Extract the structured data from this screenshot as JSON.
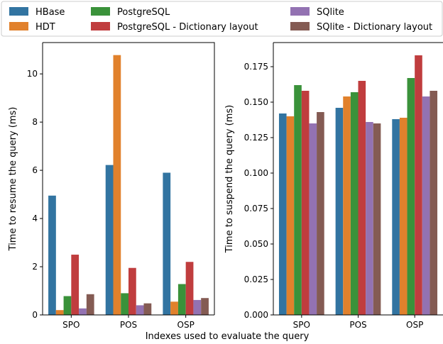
{
  "chart_data": [
    {
      "type": "bar",
      "categories": [
        "SPO",
        "POS",
        "OSP"
      ],
      "ylabel": "Time to resume the query (ms)",
      "ylim": [
        0,
        11.3
      ],
      "yticks": [
        0,
        2,
        4,
        6,
        8,
        10
      ],
      "yticklabels": [
        "0",
        "2",
        "4",
        "6",
        "8",
        "10"
      ],
      "series": [
        {
          "name": "HBase",
          "values": [
            4.95,
            6.22,
            5.9
          ]
        },
        {
          "name": "HDT",
          "values": [
            0.2,
            10.78,
            0.55
          ]
        },
        {
          "name": "PostgreSQL",
          "values": [
            0.78,
            0.9,
            1.28
          ]
        },
        {
          "name": "PostgreSQL - Dictionary layout",
          "values": [
            2.5,
            1.95,
            2.2
          ]
        },
        {
          "name": "SQlite",
          "values": [
            0.27,
            0.4,
            0.62
          ]
        },
        {
          "name": "SQlite - Dictionary layout",
          "values": [
            0.86,
            0.48,
            0.7
          ]
        }
      ]
    },
    {
      "type": "bar",
      "categories": [
        "SPO",
        "POS",
        "OSP"
      ],
      "ylabel": "Time to suspend the query (ms)",
      "ylim": [
        0,
        0.192
      ],
      "yticks": [
        0,
        0.025,
        0.05,
        0.075,
        0.1,
        0.125,
        0.15,
        0.175
      ],
      "yticklabels": [
        "0.000",
        "0.025",
        "0.050",
        "0.075",
        "0.100",
        "0.125",
        "0.150",
        "0.175"
      ],
      "series": [
        {
          "name": "HBase",
          "values": [
            0.142,
            0.146,
            0.138
          ]
        },
        {
          "name": "HDT",
          "values": [
            0.14,
            0.154,
            0.139
          ]
        },
        {
          "name": "PostgreSQL",
          "values": [
            0.162,
            0.157,
            0.167
          ]
        },
        {
          "name": "PostgreSQL - Dictionary layout",
          "values": [
            0.158,
            0.165,
            0.183
          ]
        },
        {
          "name": "SQlite",
          "values": [
            0.135,
            0.136,
            0.154
          ]
        },
        {
          "name": "SQlite - Dictionary layout",
          "values": [
            0.143,
            0.135,
            0.158
          ]
        }
      ]
    }
  ],
  "shared_xlabel": "Indexes used to evaluate the query",
  "legend": {
    "placement": "top",
    "entries": [
      {
        "label": "HBase",
        "color": "#3274a1"
      },
      {
        "label": "HDT",
        "color": "#e1812c"
      },
      {
        "label": "PostgreSQL",
        "color": "#3a923a"
      },
      {
        "label": "PostgreSQL - Dictionary layout",
        "color": "#c03d3e"
      },
      {
        "label": "SQlite",
        "color": "#9372b2"
      },
      {
        "label": "SQlite - Dictionary layout",
        "color": "#845b53"
      }
    ]
  }
}
